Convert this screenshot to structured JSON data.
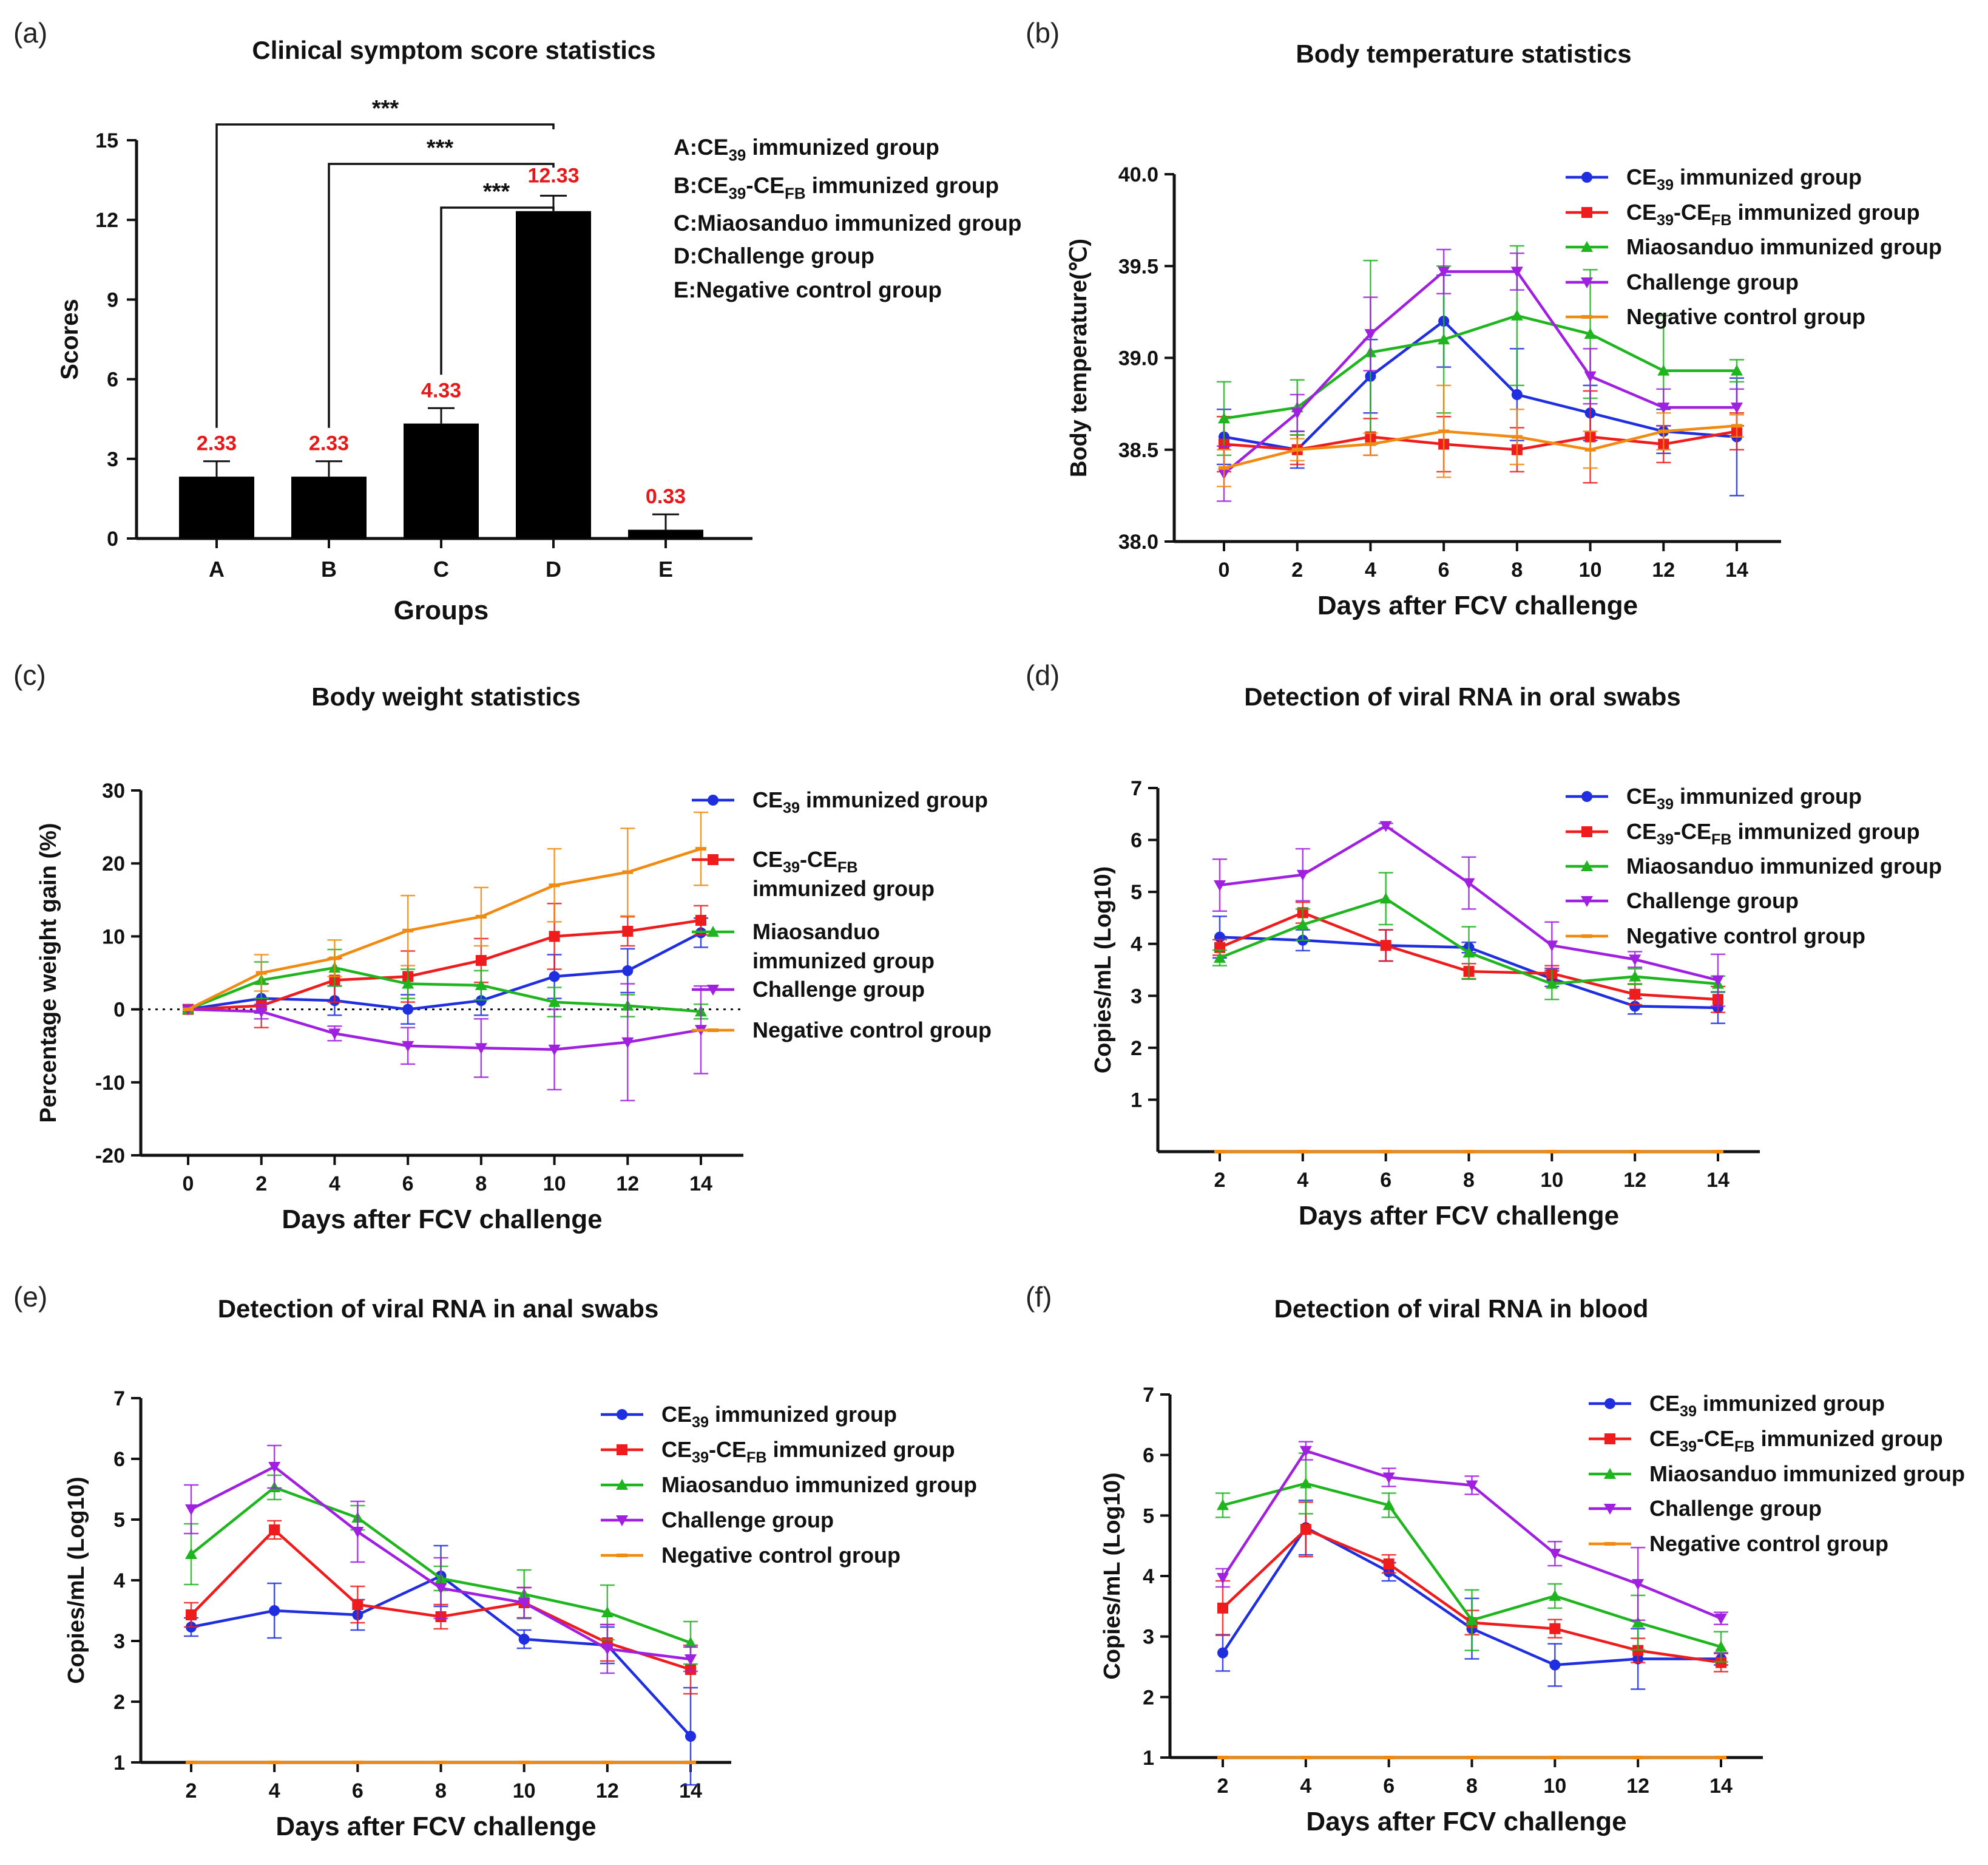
{
  "figure": {
    "series_names": [
      "CE39 immunized group",
      "CE39-CEFB immunized group",
      "Miaosanduo immunized group",
      "Challenge group",
      "Negative control group"
    ],
    "colors": {
      "CE39": "#1f2fe0",
      "CEFB": "#ee1c1c",
      "Miao": "#1fb51f",
      "Challenge": "#a020e0",
      "Negative": "#f08a10"
    }
  },
  "chart_data": [
    {
      "panel": "(a)",
      "type": "bar",
      "title": "Clinical symptom score statistics",
      "xlabel": "Groups",
      "ylabel": "Scores",
      "ylim": [
        0,
        15
      ],
      "yticks": [
        0,
        3,
        6,
        9,
        12,
        15
      ],
      "categories": [
        "A",
        "B",
        "C",
        "D",
        "E"
      ],
      "values": [
        2.33,
        2.33,
        4.33,
        12.33,
        0.33
      ],
      "errors": [
        0.58,
        0.58,
        0.58,
        0.58,
        0.58
      ],
      "value_labels": [
        "2.33",
        "2.33",
        "4.33",
        "12.33",
        "0.33"
      ],
      "significance": [
        {
          "from": "A",
          "to": "D",
          "label": "***"
        },
        {
          "from": "B",
          "to": "D",
          "label": "***"
        },
        {
          "from": "C",
          "to": "D",
          "label": "***"
        }
      ],
      "legend": [
        {
          "key": "A",
          "pre": "A:CE",
          "sub": "39",
          "post": " immunized group"
        },
        {
          "key": "B",
          "pre": "B:CE",
          "sub": "39",
          "mid": "-CE",
          "sub2": "FB",
          "post": " immunized group"
        },
        {
          "key": "C",
          "pre": "C:Miaosanduo immunized group"
        },
        {
          "key": "D",
          "pre": "D:Challenge group"
        },
        {
          "key": "E",
          "pre": "E:Negative control group"
        }
      ]
    },
    {
      "panel": "(b)",
      "type": "line",
      "title": "Body temperature statistics",
      "xlabel": "Days after FCV challenge",
      "ylabel": "Body temperature(℃)",
      "x": [
        0,
        2,
        4,
        6,
        8,
        10,
        12,
        14
      ],
      "xticks": [
        0,
        2,
        4,
        6,
        8,
        10,
        12,
        14
      ],
      "ylim": [
        38.0,
        40.0
      ],
      "yticks": [
        38.0,
        38.5,
        39.0,
        39.5,
        40.0
      ],
      "ytick_labels": [
        "38.0",
        "38.5",
        "39.0",
        "39.5",
        "40.0"
      ],
      "series": [
        {
          "name": "CE39 immunized group",
          "values": [
            38.57,
            38.5,
            38.9,
            39.2,
            38.8,
            38.7,
            38.6,
            38.57
          ],
          "errors": [
            0.15,
            0.1,
            0.2,
            0.25,
            0.25,
            0.15,
            0.12,
            0.32
          ]
        },
        {
          "name": "CE39-CEFB immunized group",
          "values": [
            38.53,
            38.5,
            38.57,
            38.53,
            38.5,
            38.57,
            38.53,
            38.6
          ],
          "errors": [
            0.15,
            0.08,
            0.1,
            0.15,
            0.12,
            0.25,
            0.1,
            0.1
          ]
        },
        {
          "name": "Miaosanduo immunized group",
          "values": [
            38.67,
            38.73,
            39.03,
            39.1,
            39.23,
            39.13,
            38.93,
            38.93
          ],
          "errors": [
            0.2,
            0.15,
            0.5,
            0.4,
            0.38,
            0.35,
            0.3,
            0.06
          ]
        },
        {
          "name": "Challenge group",
          "values": [
            38.37,
            38.7,
            39.13,
            39.47,
            39.47,
            38.9,
            38.73,
            38.73
          ],
          "errors": [
            0.15,
            0.1,
            0.2,
            0.12,
            0.1,
            0.15,
            0.1,
            0.1
          ]
        },
        {
          "name": "Negative control group",
          "values": [
            38.4,
            38.5,
            38.53,
            38.6,
            38.57,
            38.5,
            38.6,
            38.63
          ],
          "errors": [
            0.1,
            0.06,
            0.06,
            0.25,
            0.15,
            0.1,
            0.1,
            0.06
          ]
        }
      ],
      "legend_placement": "top-right"
    },
    {
      "panel": "(c)",
      "type": "line",
      "title": "Body weight statistics",
      "xlabel": "Days after FCV challenge",
      "ylabel": "Percentage weight gain (%)",
      "x": [
        0,
        2,
        4,
        6,
        8,
        10,
        12,
        14
      ],
      "xticks": [
        0,
        2,
        4,
        6,
        8,
        10,
        12,
        14
      ],
      "ylim": [
        -20,
        30
      ],
      "yticks": [
        -20,
        -10,
        0,
        10,
        20,
        30
      ],
      "zero_reference_line": true,
      "series": [
        {
          "name": "CE39 immunized group",
          "values": [
            0,
            1.5,
            1.2,
            0,
            1.2,
            4.5,
            5.3,
            10.5
          ],
          "errors": [
            0,
            2,
            2,
            2,
            2,
            3,
            3,
            2
          ]
        },
        {
          "name": "CE39-CEFB immunized group",
          "values": [
            0,
            0.5,
            4.0,
            4.5,
            6.7,
            10.0,
            10.7,
            12.2
          ],
          "errors": [
            0,
            3,
            3,
            3.5,
            3,
            4.5,
            2,
            2
          ]
        },
        {
          "name": "Miaosanduo immunized group",
          "values": [
            0,
            4.0,
            5.7,
            3.5,
            3.3,
            1.0,
            0.5,
            -0.3
          ],
          "errors": [
            0,
            2.5,
            2.5,
            2,
            2,
            2,
            1.5,
            1
          ]
        },
        {
          "name": "Challenge group",
          "values": [
            0,
            -0.3,
            -3.3,
            -5.0,
            -5.3,
            -5.5,
            -4.5,
            -2.8
          ],
          "errors": [
            0,
            1,
            1,
            2.5,
            4,
            5.5,
            8,
            6
          ]
        },
        {
          "name": "Negative control group",
          "values": [
            0,
            5.0,
            7.0,
            10.8,
            12.7,
            17.0,
            18.8,
            22.0
          ],
          "errors": [
            0,
            2.5,
            2.5,
            4.8,
            4,
            5,
            6,
            5
          ]
        }
      ],
      "legend_placement": "right"
    },
    {
      "panel": "(d)",
      "type": "line",
      "title": "Detection of viral RNA in oral swabs",
      "xlabel": "Days after FCV challenge",
      "ylabel": "Copies/mL (Log10)",
      "x": [
        2,
        4,
        6,
        8,
        10,
        12,
        14
      ],
      "xticks": [
        2,
        4,
        6,
        8,
        10,
        12,
        14
      ],
      "ylim": [
        0,
        7
      ],
      "yticks": [
        1,
        2,
        3,
        4,
        5,
        6,
        7
      ],
      "series": [
        {
          "name": "CE39 immunized group",
          "values": [
            4.13,
            4.07,
            3.97,
            3.93,
            3.33,
            2.8,
            2.77
          ],
          "errors": [
            0.4,
            0.2,
            0.3,
            0.1,
            0.15,
            0.15,
            0.3
          ]
        },
        {
          "name": "CE39-CEFB immunized group",
          "values": [
            3.93,
            4.6,
            3.97,
            3.47,
            3.43,
            3.03,
            2.93
          ],
          "errors": [
            0.15,
            0.2,
            0.3,
            0.15,
            0.15,
            0.2,
            0.25
          ]
        },
        {
          "name": "Miaosanduo immunized group",
          "values": [
            3.73,
            4.37,
            4.87,
            3.83,
            3.23,
            3.37,
            3.23
          ],
          "errors": [
            0.15,
            0.3,
            0.5,
            0.5,
            0.3,
            0.15,
            0.15
          ]
        },
        {
          "name": "Challenge group",
          "values": [
            5.13,
            5.33,
            6.27,
            5.17,
            3.97,
            3.7,
            3.3
          ],
          "errors": [
            0.5,
            0.5,
            0.05,
            0.5,
            0.45,
            0.15,
            0.5
          ]
        },
        {
          "name": "Negative control group",
          "values": [
            0,
            0,
            0,
            0,
            0,
            0,
            0
          ],
          "errors": [
            0,
            0,
            0,
            0,
            0,
            0,
            0
          ]
        }
      ],
      "legend_placement": "top-right"
    },
    {
      "panel": "(e)",
      "type": "line",
      "title": "Detection of viral RNA in anal swabs",
      "xlabel": "Days after FCV challenge",
      "ylabel": "Copies/mL (Log10)",
      "x": [
        2,
        4,
        6,
        8,
        10,
        12,
        14
      ],
      "xticks": [
        2,
        4,
        6,
        8,
        10,
        12,
        14
      ],
      "ylim": [
        1,
        7
      ],
      "yticks": [
        1,
        2,
        3,
        4,
        5,
        6,
        7
      ],
      "series": [
        {
          "name": "CE39 immunized group",
          "values": [
            3.23,
            3.5,
            3.43,
            4.07,
            3.03,
            2.93,
            1.43
          ],
          "errors": [
            0.15,
            0.45,
            0.25,
            0.5,
            0.15,
            0.3,
            0.8
          ]
        },
        {
          "name": "CE39-CEFB immunized group",
          "values": [
            3.43,
            4.83,
            3.6,
            3.4,
            3.63,
            2.97,
            2.53
          ],
          "errors": [
            0.2,
            0.15,
            0.3,
            0.2,
            0.25,
            0.3,
            0.4
          ]
        },
        {
          "name": "Miaosanduo immunized group",
          "values": [
            4.43,
            5.53,
            5.03,
            4.03,
            3.77,
            3.47,
            2.97
          ],
          "errors": [
            0.5,
            0.2,
            0.2,
            0.2,
            0.4,
            0.45,
            0.35
          ]
        },
        {
          "name": "Challenge group",
          "values": [
            5.17,
            5.87,
            4.8,
            3.87,
            3.63,
            2.87,
            2.7
          ],
          "errors": [
            0.4,
            0.35,
            0.5,
            0.5,
            0.25,
            0.4,
            0.2
          ]
        },
        {
          "name": "Negative control group",
          "values": [
            1,
            1,
            1,
            1,
            1,
            1,
            1
          ],
          "errors": [
            0,
            0,
            0,
            0,
            0,
            0,
            0
          ]
        }
      ],
      "legend_placement": "top-right"
    },
    {
      "panel": "(f)",
      "type": "line",
      "title": "Detection of viral RNA in blood",
      "xlabel": "Days after FCV challenge",
      "ylabel": "Copies/mL (Log10)",
      "x": [
        2,
        4,
        6,
        8,
        10,
        12,
        14
      ],
      "xticks": [
        2,
        4,
        6,
        8,
        10,
        12,
        14
      ],
      "ylim": [
        1,
        7
      ],
      "yticks": [
        1,
        2,
        3,
        4,
        5,
        6,
        7
      ],
      "series": [
        {
          "name": "CE39 immunized group",
          "values": [
            2.73,
            4.8,
            4.07,
            3.13,
            2.53,
            2.63,
            2.63
          ],
          "errors": [
            0.3,
            0.45,
            0.15,
            0.5,
            0.35,
            0.5,
            0.1
          ]
        },
        {
          "name": "CE39-CEFB immunized group",
          "values": [
            3.47,
            4.77,
            4.2,
            3.23,
            3.13,
            2.77,
            2.57
          ],
          "errors": [
            0.45,
            0.45,
            0.15,
            0.2,
            0.15,
            0.2,
            0.15
          ]
        },
        {
          "name": "Miaosanduo immunized group",
          "values": [
            5.17,
            5.53,
            5.17,
            3.27,
            3.67,
            3.23,
            2.83
          ],
          "errors": [
            0.2,
            0.5,
            0.2,
            0.5,
            0.2,
            0.45,
            0.25
          ]
        },
        {
          "name": "Challenge group",
          "values": [
            3.97,
            6.07,
            5.63,
            5.5,
            4.37,
            3.87,
            3.3
          ],
          "errors": [
            0.15,
            0.15,
            0.15,
            0.15,
            0.2,
            0.6,
            0.1
          ]
        },
        {
          "name": "Negative control group",
          "values": [
            1,
            1,
            1,
            1,
            1,
            1,
            1
          ],
          "errors": [
            0,
            0,
            0,
            0,
            0,
            0,
            0
          ]
        }
      ],
      "legend_placement": "top-right"
    }
  ]
}
